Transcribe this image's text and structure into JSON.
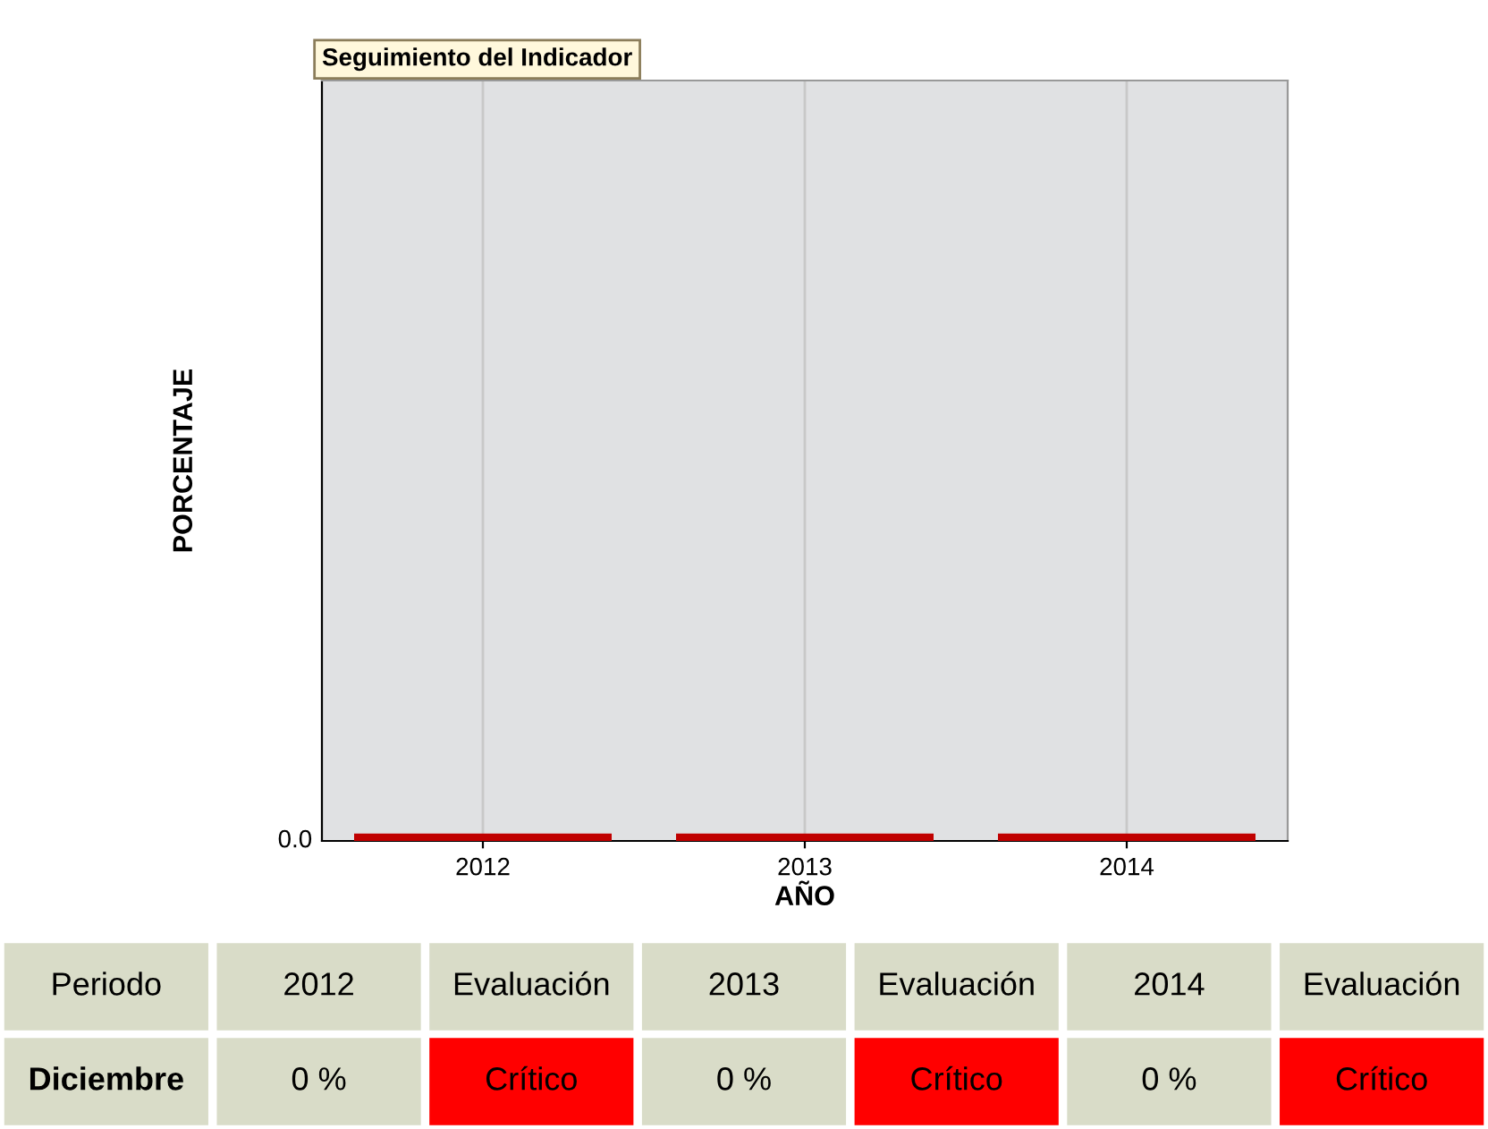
{
  "chart_data": {
    "type": "other",
    "title": "Seguimiento del Indicador",
    "xlabel": "AÑO",
    "ylabel": "PORCENTAJE",
    "categories": [
      "2012",
      "2013",
      "2014"
    ],
    "values": [
      0,
      0,
      0
    ],
    "value_labels": [
      "0 %",
      "0 %",
      "0 %"
    ],
    "annotations": [
      "0.0",
      "Periodo",
      "Evaluación",
      "Evaluación",
      "Evaluación",
      "Diciembre",
      "Crítico",
      "Crítico",
      "Crítico"
    ]
  }
}
